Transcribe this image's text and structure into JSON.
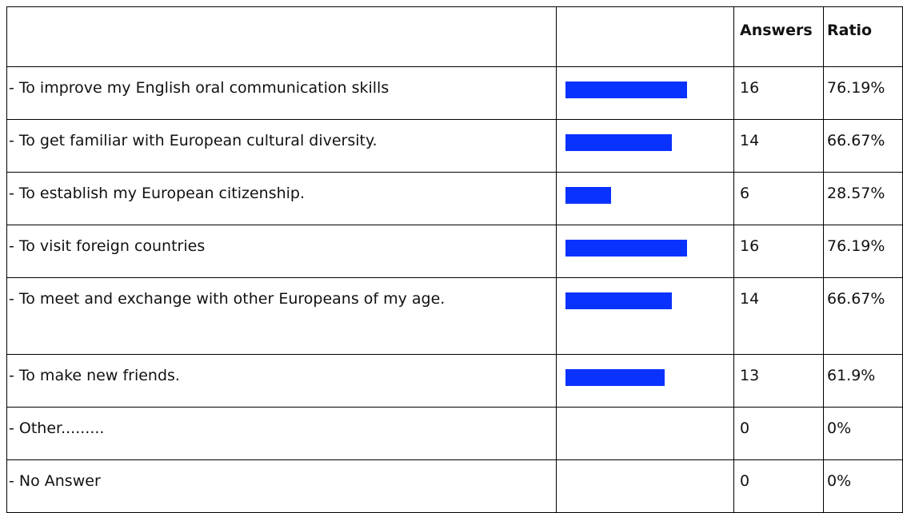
{
  "headers": {
    "answers": "Answers",
    "ratio": "Ratio"
  },
  "bar_color": "#0a32ff",
  "rows": [
    {
      "label": "- To improve my English oral communication skills",
      "answers": "16",
      "ratio": "76.19%",
      "share": 0.7619
    },
    {
      "label": "- To get familiar with European cultural diversity.",
      "answers": "14",
      "ratio": "66.67%",
      "share": 0.6667
    },
    {
      "label": "- To establish my European citizenship.",
      "answers": "6",
      "ratio": "28.57%",
      "share": 0.2857
    },
    {
      "label": "- To visit foreign countries",
      "answers": "16",
      "ratio": "76.19%",
      "share": 0.7619
    },
    {
      "label": "- To meet and exchange with other Europeans of my age.",
      "answers": "14",
      "ratio": "66.67%",
      "share": 0.6667
    },
    {
      "label": "- To make new friends.",
      "answers": "13",
      "ratio": "61.9%",
      "share": 0.619
    },
    {
      "label": "- Other.........",
      "answers": "0",
      "ratio": "0%",
      "share": 0
    },
    {
      "label": "- No Answer",
      "answers": "0",
      "ratio": "0%",
      "share": 0
    }
  ]
}
